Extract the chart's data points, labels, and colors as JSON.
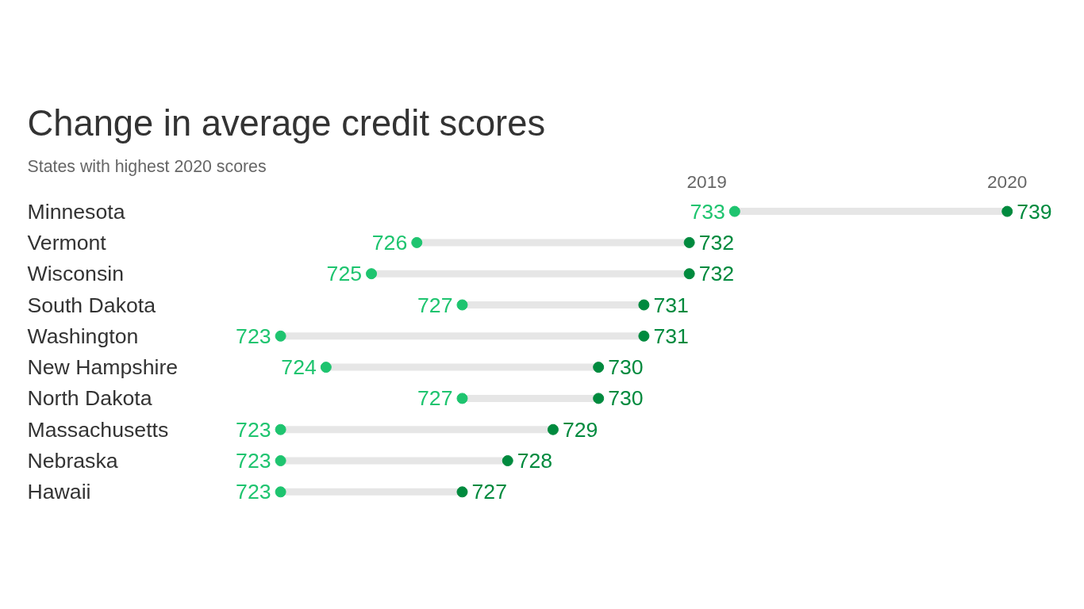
{
  "chart_data": {
    "type": "scatter",
    "title": "Change in average credit scores",
    "subtitle": "States with highest 2020 scores",
    "orientation": "horizontal",
    "categories": [
      "Minnesota",
      "Vermont",
      "Wisconsin",
      "South Dakota",
      "Washington",
      "New Hampshire",
      "North Dakota",
      "Massachusetts",
      "Nebraska",
      "Hawaii"
    ],
    "series": [
      {
        "name": "2019",
        "color": "#1ec46f",
        "values": [
          733,
          726,
          725,
          727,
          723,
          724,
          727,
          723,
          723,
          723
        ]
      },
      {
        "name": "2020",
        "color": "#008a3e",
        "values": [
          739,
          732,
          732,
          731,
          731,
          730,
          730,
          729,
          728,
          727
        ]
      }
    ],
    "data_labels": true,
    "marker": "circle",
    "grid": false,
    "legend": false
  }
}
